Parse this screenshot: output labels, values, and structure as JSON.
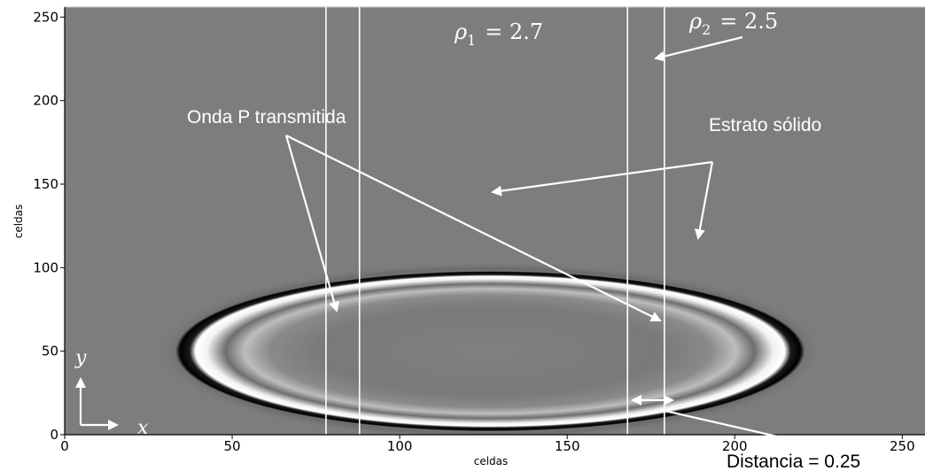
{
  "chart_data": {
    "type": "heatmap",
    "xlabel": "celdas",
    "ylabel": "celdas",
    "xlim": [
      0,
      256
    ],
    "ylim": [
      0,
      256
    ],
    "xticks": [
      0,
      50,
      100,
      150,
      200,
      250
    ],
    "yticks": [
      0,
      50,
      100,
      150,
      200,
      250
    ],
    "colormap": "grayscale",
    "background_color": "#7d7d7d",
    "wavefront": {
      "center": [
        127,
        50
      ],
      "outer_radii": [
        94,
        48
      ],
      "inner_radii": [
        86,
        40
      ]
    },
    "layer_boundaries_x": [
      78,
      88,
      168,
      179
    ],
    "annotations": {
      "rho1": {
        "symbol": "ρ",
        "sub": "1",
        "value": "= 2.7"
      },
      "rho2": {
        "symbol": "ρ",
        "sub": "2",
        "value": "= 2.5"
      },
      "transmitted": "Onda P transmitida",
      "stratum": "Estrato sólido",
      "distance": "Distancia = 0.25"
    },
    "axis_indicator": {
      "x": "x",
      "y": "y"
    }
  }
}
